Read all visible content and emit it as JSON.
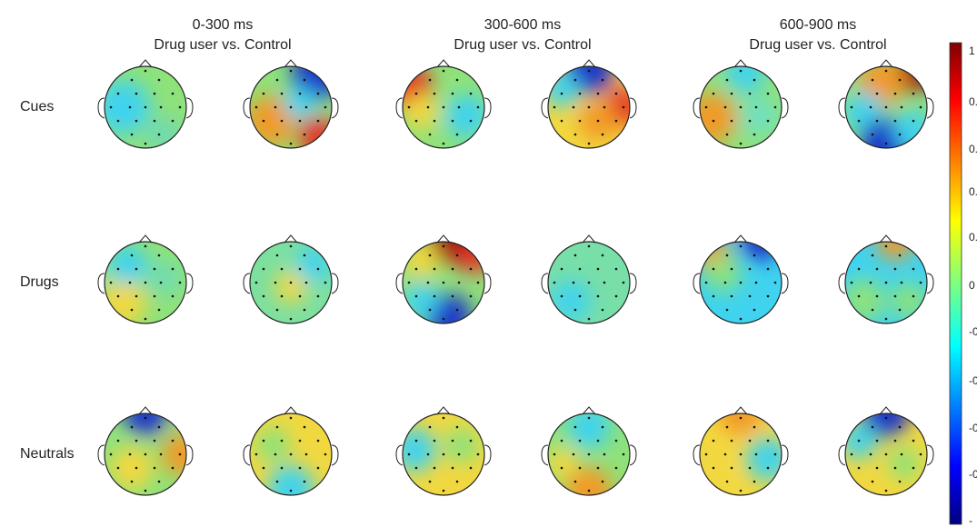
{
  "columns": [
    {
      "time": "0-300 ms",
      "comparison": "Drug user vs. Control"
    },
    {
      "time": "300-600 ms",
      "comparison": "Drug user vs. Control"
    },
    {
      "time": "600-900 ms",
      "comparison": "Drug user vs. Control"
    }
  ],
  "rows": [
    "Cues",
    "Drugs",
    "Neutrals"
  ],
  "colorbar": {
    "labels": [
      "1",
      "0.",
      "0.",
      "0.",
      "0.",
      "0",
      "-0",
      "-0",
      "-0",
      "-0",
      "-"
    ]
  }
}
